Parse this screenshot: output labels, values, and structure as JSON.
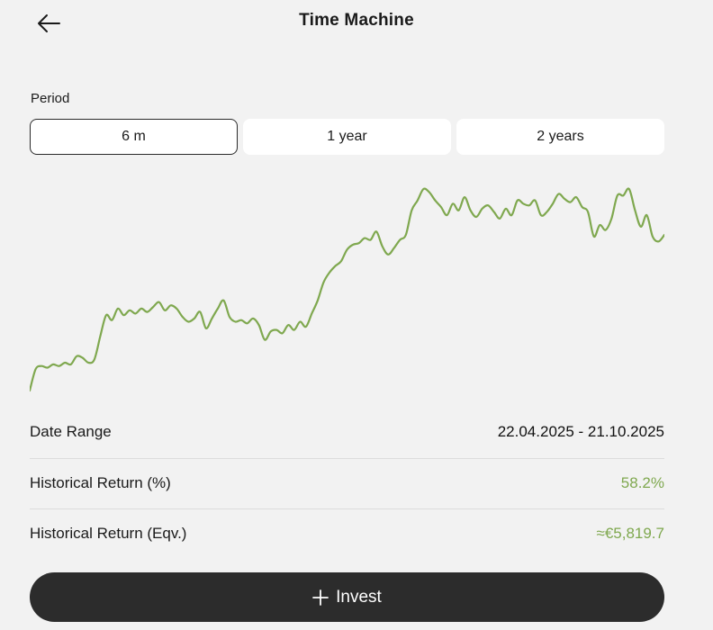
{
  "header": {
    "title": "Time Machine",
    "back_icon": "arrow-left-icon"
  },
  "period": {
    "label": "Period",
    "tabs": [
      {
        "label": "6 m",
        "active": true
      },
      {
        "label": "1 year",
        "active": false
      },
      {
        "label": "2 years",
        "active": false
      }
    ]
  },
  "chart_data": {
    "type": "line",
    "title": "",
    "xlabel": "",
    "ylabel": "",
    "grid": false,
    "axes_visible": false,
    "color": "#7fa84f",
    "series": [
      {
        "values": [
          1.0,
          1.13,
          1.15,
          1.14,
          1.16,
          1.15,
          1.17,
          1.16,
          1.21,
          1.2,
          1.17,
          1.19,
          1.33,
          1.46,
          1.43,
          1.5,
          1.46,
          1.49,
          1.47,
          1.5,
          1.48,
          1.51,
          1.54,
          1.49,
          1.52,
          1.5,
          1.45,
          1.42,
          1.44,
          1.48,
          1.38,
          1.44,
          1.5,
          1.55,
          1.45,
          1.42,
          1.43,
          1.41,
          1.44,
          1.4,
          1.31,
          1.36,
          1.37,
          1.35,
          1.4,
          1.37,
          1.42,
          1.39,
          1.47,
          1.55,
          1.66,
          1.72,
          1.76,
          1.79,
          1.86,
          1.89,
          1.9,
          1.93,
          1.92,
          1.97,
          1.88,
          1.83,
          1.87,
          1.92,
          1.95,
          2.1,
          2.16,
          2.23,
          2.21,
          2.16,
          2.12,
          2.07,
          2.14,
          2.1,
          2.18,
          2.1,
          2.06,
          2.11,
          2.13,
          2.09,
          2.05,
          2.11,
          2.07,
          2.16,
          2.14,
          2.13,
          2.16,
          2.07,
          2.09,
          2.14,
          2.2,
          2.17,
          2.15,
          2.18,
          2.12,
          2.09,
          1.94,
          2.01,
          1.98,
          2.05,
          2.19,
          2.19,
          2.23,
          2.1,
          2.0,
          2.07,
          1.94,
          1.91,
          1.95
        ]
      }
    ]
  },
  "info": {
    "date_range_label": "Date Range",
    "date_range_value": "22.04.2025 - 21.10.2025",
    "return_pct_label": "Historical Return (%)",
    "return_pct_value": "58.2%",
    "return_eqv_label": "Historical Return (Eqv.)",
    "return_eqv_value": "≈€5,819.7",
    "positive_color": "#7fa84f"
  },
  "invest_button": {
    "label": "Invest",
    "icon": "plus-icon"
  }
}
